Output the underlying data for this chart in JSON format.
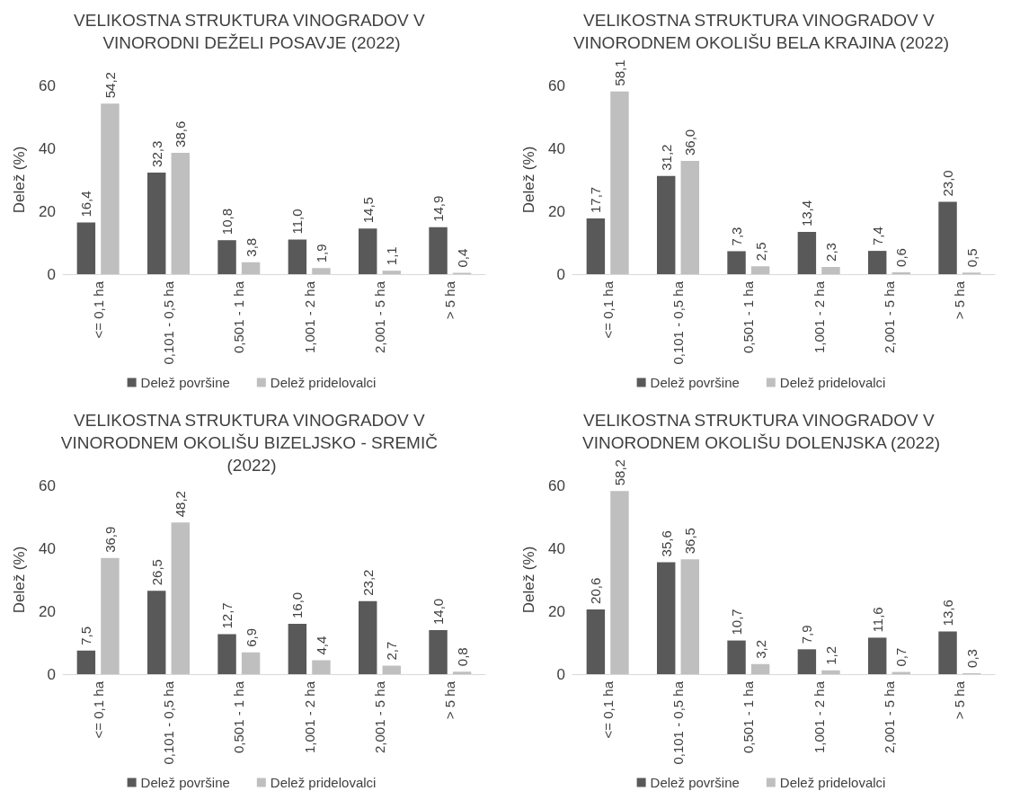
{
  "chart_data": [
    {
      "type": "bar",
      "title": "VELIKOSTNA STRUKTURA VINOGRADOV V VINORODNI DEŽELI POSAVJE (2022)",
      "ylabel": "Delež (%)",
      "categories": [
        "<= 0,1 ha",
        "0,101 - 0,5 ha",
        "0,501 - 1 ha",
        "1,001 - 2 ha",
        "2,001 - 5 ha",
        "> 5 ha"
      ],
      "series": [
        {
          "name": "Delež površine",
          "color": "#595959",
          "values": [
            16.4,
            32.3,
            10.8,
            11.0,
            14.5,
            14.9
          ],
          "value_labels": [
            "16,4",
            "32,3",
            "10,8",
            "11,0",
            "14,5",
            "14,9"
          ]
        },
        {
          "name": "Delež pridelovalci",
          "color": "#bfbfbf",
          "values": [
            54.2,
            38.6,
            3.8,
            1.9,
            1.1,
            0.4
          ],
          "value_labels": [
            "54,2",
            "38,6",
            "3,8",
            "1,9",
            "1,1",
            "0,4"
          ]
        }
      ],
      "ylim": [
        0,
        60
      ],
      "yticks": [
        0,
        20,
        40,
        60
      ],
      "grid": false,
      "legend": "bottom"
    },
    {
      "type": "bar",
      "title": "VELIKOSTNA STRUKTURA VINOGRADOV V VINORODNEM OKOLIŠU BELA KRAJINA (2022)",
      "ylabel": "Delež (%)",
      "categories": [
        "<= 0,1 ha",
        "0,101 - 0,5 ha",
        "0,501 - 1 ha",
        "1,001 - 2 ha",
        "2,001 - 5 ha",
        "> 5 ha"
      ],
      "series": [
        {
          "name": "Delež površine",
          "color": "#595959",
          "values": [
            17.7,
            31.2,
            7.3,
            13.4,
            7.4,
            23.0
          ],
          "value_labels": [
            "17,7",
            "31,2",
            "7,3",
            "13,4",
            "7,4",
            "23,0"
          ]
        },
        {
          "name": "Delež pridelovalci",
          "color": "#bfbfbf",
          "values": [
            58.1,
            36.0,
            2.5,
            2.3,
            0.6,
            0.5
          ],
          "value_labels": [
            "58,1",
            "36,0",
            "2,5",
            "2,3",
            "0,6",
            "0,5"
          ]
        }
      ],
      "ylim": [
        0,
        60
      ],
      "yticks": [
        0,
        20,
        40,
        60
      ],
      "grid": false,
      "legend": "bottom"
    },
    {
      "type": "bar",
      "title": "VELIKOSTNA STRUKTURA VINOGRADOV V VINORODNEM OKOLIŠU BIZELJSKO - SREMIČ (2022)",
      "ylabel": "Delež (%)",
      "categories": [
        "<= 0,1 ha",
        "0,101 - 0,5 ha",
        "0,501 - 1 ha",
        "1,001 - 2 ha",
        "2,001 - 5 ha",
        "> 5 ha"
      ],
      "series": [
        {
          "name": "Delež površine",
          "color": "#595959",
          "values": [
            7.5,
            26.5,
            12.7,
            16.0,
            23.2,
            14.0
          ],
          "value_labels": [
            "7,5",
            "26,5",
            "12,7",
            "16,0",
            "23,2",
            "14,0"
          ]
        },
        {
          "name": "Delež pridelovalci",
          "color": "#bfbfbf",
          "values": [
            36.9,
            48.2,
            6.9,
            4.4,
            2.7,
            0.8
          ],
          "value_labels": [
            "36,9",
            "48,2",
            "6,9",
            "4,4",
            "2,7",
            "0,8"
          ]
        }
      ],
      "ylim": [
        0,
        60
      ],
      "yticks": [
        0,
        20,
        40,
        60
      ],
      "grid": false,
      "legend": "bottom"
    },
    {
      "type": "bar",
      "title": "VELIKOSTNA STRUKTURA VINOGRADOV V VINORODNEM OKOLIŠU DOLENJSKA (2022)",
      "ylabel": "Delež (%)",
      "categories": [
        "<= 0,1 ha",
        "0,101 - 0,5 ha",
        "0,501 - 1 ha",
        "1,001 - 2 ha",
        "2,001 - 5 ha",
        "> 5 ha"
      ],
      "series": [
        {
          "name": "Delež površine",
          "color": "#595959",
          "values": [
            20.6,
            35.6,
            10.7,
            7.9,
            11.6,
            13.6
          ],
          "value_labels": [
            "20,6",
            "35,6",
            "10,7",
            "7,9",
            "11,6",
            "13,6"
          ]
        },
        {
          "name": "Delež pridelovalci",
          "color": "#bfbfbf",
          "values": [
            58.2,
            36.5,
            3.2,
            1.2,
            0.7,
            0.3
          ],
          "value_labels": [
            "58,2",
            "36,5",
            "3,2",
            "1,2",
            "0,7",
            "0,3"
          ]
        }
      ],
      "ylim": [
        0,
        60
      ],
      "yticks": [
        0,
        20,
        40,
        60
      ],
      "grid": false,
      "legend": "bottom"
    }
  ]
}
